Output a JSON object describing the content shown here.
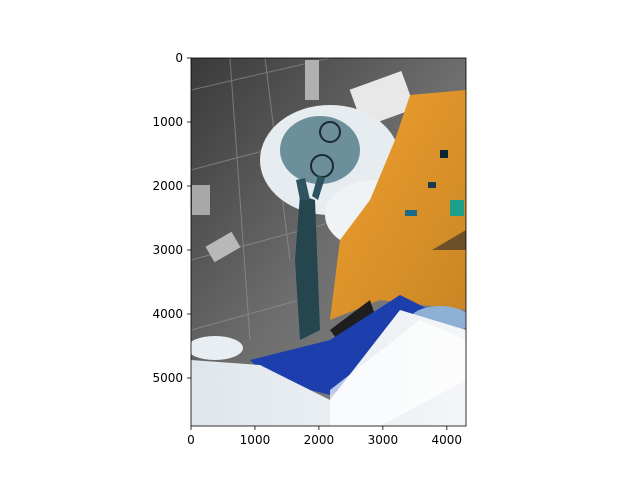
{
  "figure": {
    "image_description_colors": {
      "background": "#ffffff",
      "axis": "#000000"
    }
  },
  "chart_data": {
    "type": "image",
    "title": "",
    "xlabel": "",
    "ylabel": "",
    "xlim": [
      0,
      4300
    ],
    "ylim": [
      5750,
      0
    ],
    "x_ticks": [
      "0",
      "1000",
      "2000",
      "3000",
      "4000"
    ],
    "y_ticks": [
      "0",
      "1000",
      "2000",
      "3000",
      "4000",
      "5000"
    ],
    "x_tick_values": [
      0,
      1000,
      2000,
      3000,
      4000
    ],
    "y_tick_values": [
      0,
      1000,
      2000,
      3000,
      4000,
      5000
    ]
  }
}
